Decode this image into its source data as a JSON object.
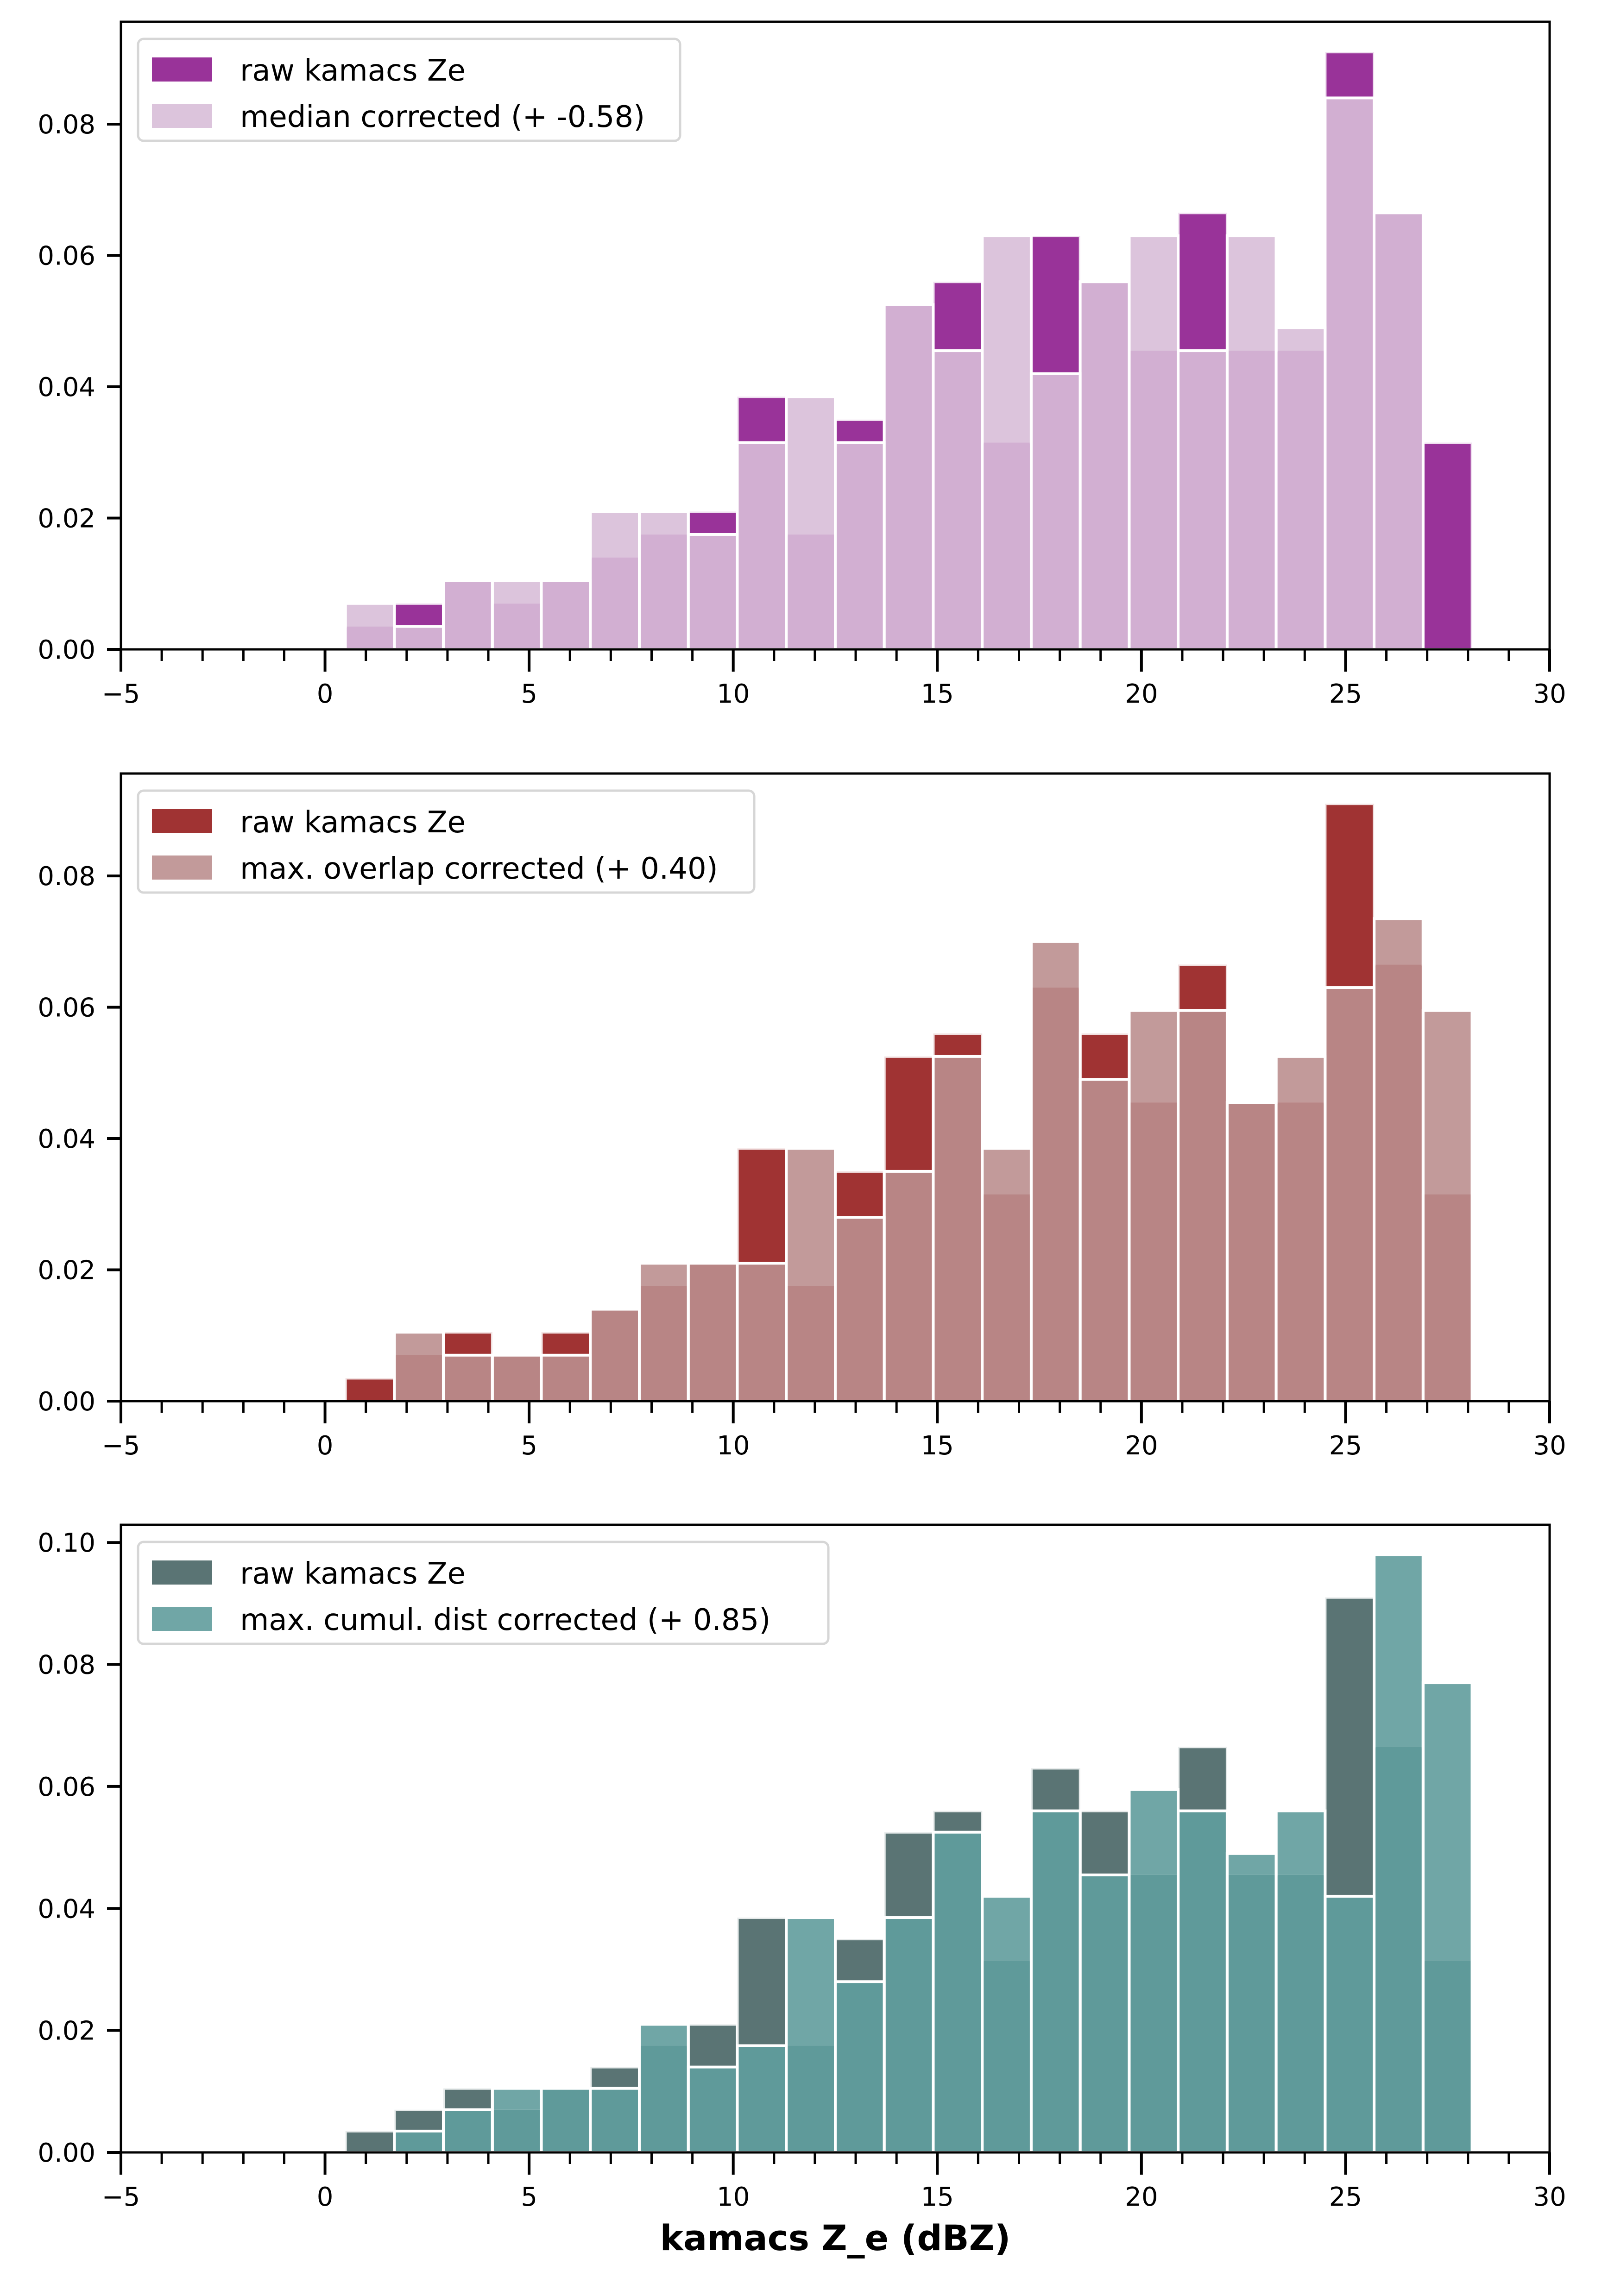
{
  "figure": {
    "xlabel": "kamacs Z_e (dBZ)"
  },
  "chart_data": [
    {
      "type": "bar",
      "subtype": "overlaid-histogram",
      "title": "",
      "xlabel": "",
      "ylabel": "",
      "xlim": [
        -5,
        30
      ],
      "ylim": [
        0,
        0.0956
      ],
      "xticks": [
        -5,
        0,
        5,
        10,
        15,
        20,
        25,
        30
      ],
      "xtick_labels": [
        "−5",
        "0",
        "5",
        "10",
        "15",
        "20",
        "25",
        "30"
      ],
      "yticks": [
        0.0,
        0.02,
        0.04,
        0.06,
        0.08
      ],
      "ytick_labels": [
        "0.00",
        "0.02",
        "0.04",
        "0.06",
        "0.08"
      ],
      "grid": false,
      "legend_position": "top-left",
      "bin_edges": [
        0.5,
        1.7,
        2.9,
        4.1,
        5.3,
        6.5,
        7.7,
        8.9,
        10.1,
        11.3,
        12.5,
        13.7,
        14.9,
        16.1,
        17.3,
        18.5,
        19.7,
        20.9,
        22.1,
        23.3,
        24.5,
        25.7,
        26.9,
        28.1
      ],
      "series": [
        {
          "name": "raw kamacs Ze",
          "color": "#993399",
          "values": [
            0.0035,
            0.007,
            0.0105,
            0.007,
            0.0105,
            0.014,
            0.0175,
            0.021,
            0.0385,
            0.0175,
            0.035,
            0.0525,
            0.056,
            0.0315,
            0.063,
            0.056,
            0.0455,
            0.0665,
            0.0455,
            0.0455,
            0.091,
            0.0665,
            0.0315
          ]
        },
        {
          "name": "median corrected (+ -0.58)",
          "color": "#dcc4dc",
          "overlap_color": "#d2afd2",
          "values": [
            0.007,
            0.0035,
            0.0105,
            0.0105,
            0.0105,
            0.021,
            0.021,
            0.0175,
            0.0315,
            0.0385,
            0.0315,
            0.0525,
            0.0455,
            0.063,
            0.042,
            0.056,
            0.063,
            0.0455,
            0.063,
            0.049,
            0.084,
            0.0665,
            0.0
          ]
        }
      ]
    },
    {
      "type": "bar",
      "subtype": "overlaid-histogram",
      "title": "",
      "xlabel": "",
      "ylabel": "",
      "xlim": [
        -5,
        30
      ],
      "ylim": [
        0,
        0.0956
      ],
      "xticks": [
        -5,
        0,
        5,
        10,
        15,
        20,
        25,
        30
      ],
      "xtick_labels": [
        "−5",
        "0",
        "5",
        "10",
        "15",
        "20",
        "25",
        "30"
      ],
      "yticks": [
        0.0,
        0.02,
        0.04,
        0.06,
        0.08
      ],
      "ytick_labels": [
        "0.00",
        "0.02",
        "0.04",
        "0.06",
        "0.08"
      ],
      "grid": false,
      "legend_position": "top-left",
      "bin_edges": [
        0.5,
        1.7,
        2.9,
        4.1,
        5.3,
        6.5,
        7.7,
        8.9,
        10.1,
        11.3,
        12.5,
        13.7,
        14.9,
        16.1,
        17.3,
        18.5,
        19.7,
        20.9,
        22.1,
        23.3,
        24.5,
        25.7,
        26.9,
        28.1
      ],
      "series": [
        {
          "name": "raw kamacs Ze",
          "color": "#a03333",
          "values": [
            0.0035,
            0.007,
            0.0105,
            0.007,
            0.0105,
            0.014,
            0.0175,
            0.021,
            0.0385,
            0.0175,
            0.035,
            0.0525,
            0.056,
            0.0315,
            0.063,
            0.056,
            0.0455,
            0.0665,
            0.0455,
            0.0455,
            0.091,
            0.0665,
            0.0315
          ]
        },
        {
          "name": "max. overlap corrected (+ 0.40)",
          "color": "#c29a9a",
          "overlap_color": "#b88585",
          "values": [
            0.0,
            0.0105,
            0.007,
            0.007,
            0.007,
            0.014,
            0.021,
            0.021,
            0.021,
            0.0385,
            0.028,
            0.035,
            0.0525,
            0.0385,
            0.07,
            0.049,
            0.0595,
            0.0595,
            0.0455,
            0.0525,
            0.063,
            0.0735,
            0.0595
          ]
        }
      ]
    },
    {
      "type": "bar",
      "subtype": "overlaid-histogram",
      "title": "",
      "xlabel": "kamacs Z_e (dBZ)",
      "ylabel": "",
      "xlim": [
        -5,
        30
      ],
      "ylim": [
        0,
        0.1029
      ],
      "xticks": [
        -5,
        0,
        5,
        10,
        15,
        20,
        25,
        30
      ],
      "xtick_labels": [
        "−5",
        "0",
        "5",
        "10",
        "15",
        "20",
        "25",
        "30"
      ],
      "yticks": [
        0.0,
        0.02,
        0.04,
        0.06,
        0.08,
        0.1
      ],
      "ytick_labels": [
        "0.00",
        "0.02",
        "0.04",
        "0.06",
        "0.08",
        "0.10"
      ],
      "grid": false,
      "legend_position": "top-left",
      "bin_edges": [
        0.5,
        1.7,
        2.9,
        4.1,
        5.3,
        6.5,
        7.7,
        8.9,
        10.1,
        11.3,
        12.5,
        13.7,
        14.9,
        16.1,
        17.3,
        18.5,
        19.7,
        20.9,
        22.1,
        23.3,
        24.5,
        25.7,
        26.9,
        28.1
      ],
      "series": [
        {
          "name": "raw kamacs Ze",
          "color": "#5a7474",
          "values": [
            0.0035,
            0.007,
            0.0105,
            0.007,
            0.0105,
            0.014,
            0.0175,
            0.021,
            0.0385,
            0.0175,
            0.035,
            0.0525,
            0.056,
            0.0315,
            0.063,
            0.056,
            0.0455,
            0.0665,
            0.0455,
            0.0455,
            0.091,
            0.0665,
            0.0315
          ]
        },
        {
          "name": "max. cumul. dist corrected (+ 0.85)",
          "color": "#70a6a6",
          "overlap_color": "#5f9a9a",
          "values": [
            0.0,
            0.0035,
            0.007,
            0.0105,
            0.0105,
            0.0105,
            0.021,
            0.014,
            0.0175,
            0.0385,
            0.028,
            0.0385,
            0.0525,
            0.042,
            0.056,
            0.0455,
            0.0595,
            0.056,
            0.049,
            0.056,
            0.042,
            0.098,
            0.077
          ]
        }
      ]
    }
  ]
}
